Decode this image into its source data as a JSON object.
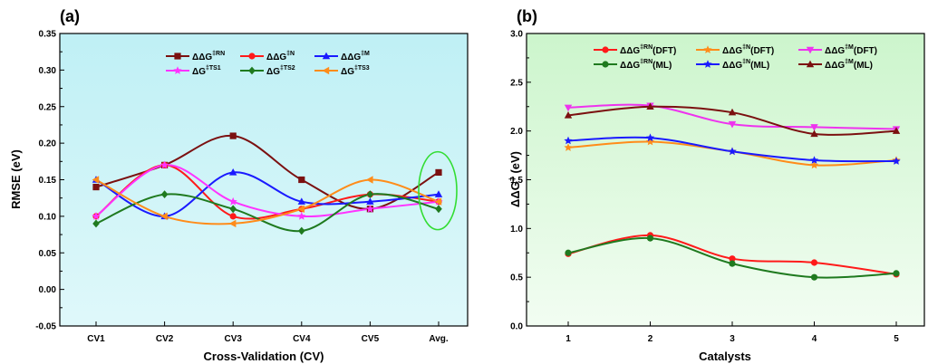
{
  "chart_data": [
    {
      "type": "line",
      "panel_label": "(a)",
      "xlabel": "Cross-Validation (CV)",
      "ylabel": "RMSE (eV)",
      "categories": [
        "CV1",
        "CV2",
        "CV3",
        "CV4",
        "CV5",
        "Avg."
      ],
      "ylim": [
        -0.05,
        0.35
      ],
      "yticks": [
        "-0.05",
        "0.00",
        "0.05",
        "0.10",
        "0.15",
        "0.20",
        "0.25",
        "0.30",
        "0.35"
      ],
      "background": "gradient-cyan",
      "legend_placement": "top-center",
      "highlight_ellipse_category": "Avg.",
      "highlight_color": "#33dd33",
      "series": [
        {
          "base": "ΔΔG",
          "sup": "‡RN",
          "color": "#7b1010",
          "marker": "square",
          "values": [
            0.14,
            0.17,
            0.21,
            0.15,
            0.11,
            0.16
          ]
        },
        {
          "base": "ΔΔG",
          "sup": "‡N",
          "color": "#ff1a1a",
          "marker": "circle",
          "values": [
            0.1,
            0.17,
            0.1,
            0.11,
            0.13,
            0.12
          ]
        },
        {
          "base": "ΔΔG",
          "sup": "‡M",
          "color": "#1a1aff",
          "marker": "triangle-up",
          "values": [
            0.15,
            0.1,
            0.16,
            0.12,
            0.12,
            0.13
          ]
        },
        {
          "base": "ΔG",
          "sup": "‡TS1",
          "color": "#ff33ff",
          "marker": "star",
          "values": [
            0.1,
            0.17,
            0.12,
            0.1,
            0.11,
            0.12
          ]
        },
        {
          "base": "ΔG",
          "sup": "‡TS2",
          "color": "#1f7a1f",
          "marker": "diamond",
          "values": [
            0.09,
            0.13,
            0.11,
            0.08,
            0.13,
            0.11
          ]
        },
        {
          "base": "ΔG",
          "sup": "‡TS3",
          "color": "#ff8c1a",
          "marker": "triangle-left",
          "values": [
            0.15,
            0.1,
            0.09,
            0.11,
            0.15,
            0.12
          ]
        }
      ]
    },
    {
      "type": "line",
      "panel_label": "(b)",
      "xlabel": "Catalysts",
      "ylabel_base": "ΔΔG",
      "ylabel_sup": "‡",
      "ylabel_tail": " (eV)",
      "categories": [
        "1",
        "2",
        "3",
        "4",
        "5"
      ],
      "ylim": [
        0.0,
        3.0
      ],
      "yticks": [
        "0.0",
        "0.5",
        "1.0",
        "1.5",
        "2.0",
        "2.5",
        "3.0"
      ],
      "background": "gradient-green",
      "legend_placement": "top-center",
      "series": [
        {
          "base": "ΔΔG",
          "sup": "‡RN",
          "tail": "(DFT)",
          "color": "#ff1a1a",
          "marker": "circle",
          "values": [
            0.74,
            0.93,
            0.69,
            0.65,
            0.53
          ]
        },
        {
          "base": "ΔΔG",
          "sup": "‡N",
          "tail": "(DFT)",
          "color": "#ff8c1a",
          "marker": "star",
          "values": [
            1.83,
            1.89,
            1.79,
            1.65,
            1.7
          ]
        },
        {
          "base": "ΔΔG",
          "sup": "‡M",
          "tail": "(DFT)",
          "color": "#ee33ee",
          "marker": "triangle-down",
          "values": [
            2.24,
            2.26,
            2.07,
            2.04,
            2.02
          ]
        },
        {
          "base": "ΔΔG",
          "sup": "‡RN",
          "tail": "(ML)",
          "color": "#1f7a1f",
          "marker": "circle",
          "values": [
            0.75,
            0.9,
            0.64,
            0.5,
            0.54
          ]
        },
        {
          "base": "ΔΔG",
          "sup": "‡N",
          "tail": "(ML)",
          "color": "#1a1aff",
          "marker": "star",
          "values": [
            1.9,
            1.93,
            1.79,
            1.7,
            1.69
          ]
        },
        {
          "base": "ΔΔG",
          "sup": "‡M",
          "tail": "(ML)",
          "color": "#7b1010",
          "marker": "triangle-up",
          "values": [
            2.16,
            2.25,
            2.19,
            1.97,
            2.0
          ]
        }
      ]
    }
  ]
}
